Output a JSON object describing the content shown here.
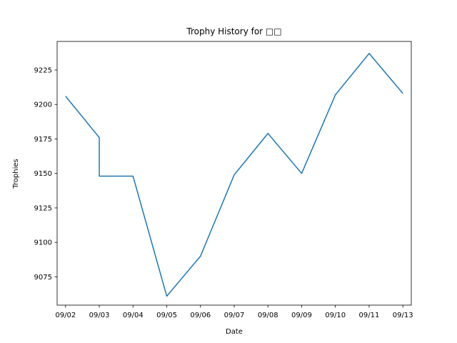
{
  "chart_data": {
    "type": "line",
    "title": "Trophy History for □□",
    "xlabel": "Date",
    "ylabel": "Trophies",
    "x_tick_labels": [
      "09/02",
      "09/03",
      "09/04",
      "09/05",
      "09/06",
      "09/07",
      "09/08",
      "09/09",
      "09/10",
      "09/11",
      "09/13"
    ],
    "y_ticks": [
      9075,
      9100,
      9125,
      9150,
      9175,
      9200,
      9225
    ],
    "xlim": [
      -0.25,
      10.25
    ],
    "ylim": [
      9054.5,
      9245.7
    ],
    "grid": false,
    "line_color": "#1f77b4",
    "series": [
      {
        "points": [
          {
            "x": 0,
            "y": 9206
          },
          {
            "x": 1,
            "y": 9176
          },
          {
            "x": 1,
            "y": 9148
          },
          {
            "x": 2,
            "y": 9148
          },
          {
            "x": 3,
            "y": 9061
          },
          {
            "x": 4,
            "y": 9090
          },
          {
            "x": 5,
            "y": 9149
          },
          {
            "x": 6,
            "y": 9179
          },
          {
            "x": 7,
            "y": 9150
          },
          {
            "x": 8,
            "y": 9207
          },
          {
            "x": 9,
            "y": 9237
          },
          {
            "x": 10,
            "y": 9208
          }
        ]
      }
    ]
  }
}
